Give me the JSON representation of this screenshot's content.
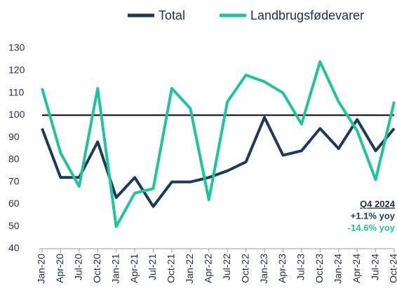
{
  "chart_data": {
    "type": "line",
    "categories": [
      "Jan-20",
      "Apr-20",
      "Jul-20",
      "Oct-20",
      "Jan-21",
      "Apr-21",
      "Jul-21",
      "Oct-21",
      "Jan-22",
      "Apr-22",
      "Jul-22",
      "Oct-22",
      "Jan-23",
      "Apr-23",
      "Jul-23",
      "Oct-23",
      "Jan-24",
      "Apr-24",
      "Jul-24",
      "Oct-24"
    ],
    "series": [
      {
        "name": "Total",
        "color": "#1b3a5e",
        "values": [
          94,
          72,
          72,
          88,
          63,
          72,
          59,
          70,
          70,
          72,
          75,
          79,
          99,
          82,
          84,
          94,
          85,
          98,
          84,
          94
        ]
      },
      {
        "name": "Landbrugsfødevarer",
        "color": "#20c49b",
        "values": [
          112,
          83,
          68,
          112,
          50,
          65,
          67,
          112,
          103,
          62,
          106,
          118,
          115,
          110,
          96,
          124,
          106,
          93,
          71,
          106
        ]
      }
    ],
    "ylim": [
      40,
      130
    ],
    "yticks": [
      40,
      50,
      60,
      70,
      80,
      90,
      100,
      110,
      120,
      130
    ],
    "reference_line": 100,
    "legend": "top-right",
    "annotations": [
      {
        "text": "Q4 2024",
        "color": "#1e2d4a"
      },
      {
        "text": "+1.1% yoy",
        "color": "#1b3a5e"
      },
      {
        "text": "-14.6% yoy",
        "color": "#20c49b"
      }
    ]
  }
}
